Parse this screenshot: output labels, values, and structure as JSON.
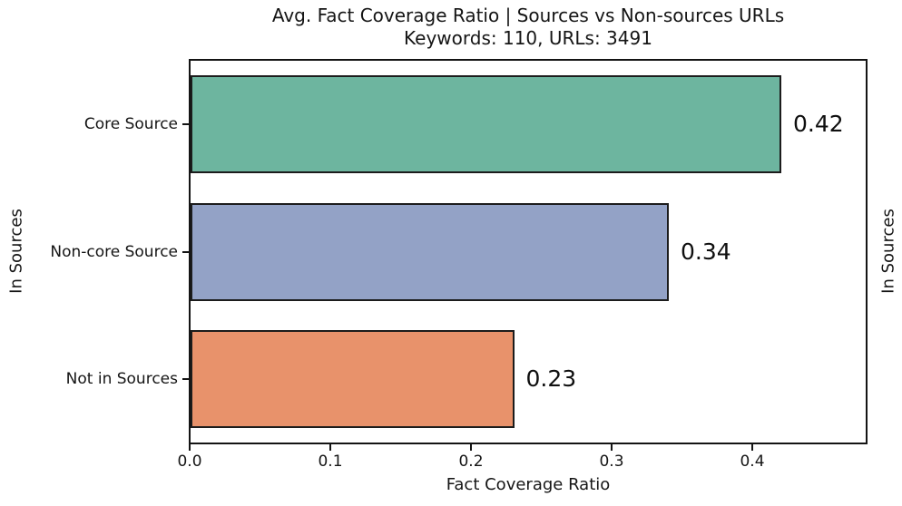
{
  "chart_data": {
    "type": "bar",
    "orientation": "horizontal",
    "title": "Avg. Fact Coverage Ratio | Sources vs Non-sources URLs",
    "subtitle": "Keywords: 110, URLs: 3491",
    "categories": [
      "Core Source",
      "Non-core Source",
      "Not in Sources"
    ],
    "values": [
      0.42,
      0.34,
      0.23
    ],
    "value_labels": [
      "0.42",
      "0.34",
      "0.23"
    ],
    "bar_colors": [
      "#6db59f",
      "#93a2c6",
      "#e8926b"
    ],
    "xlabel": "Fact Coverage Ratio",
    "ylabel_left": "In Sources",
    "ylabel_right": "In Sources",
    "x_ticks": [
      "0.0",
      "0.1",
      "0.2",
      "0.3",
      "0.4"
    ],
    "x_tick_values": [
      0.0,
      0.1,
      0.2,
      0.3,
      0.4
    ],
    "xlim": [
      0,
      0.48
    ],
    "grid": false,
    "legend": "none",
    "colors": {
      "bar_edge": "#1c1c1c",
      "spine": "#141414",
      "text": "#151515",
      "background": "#ffffff"
    }
  }
}
